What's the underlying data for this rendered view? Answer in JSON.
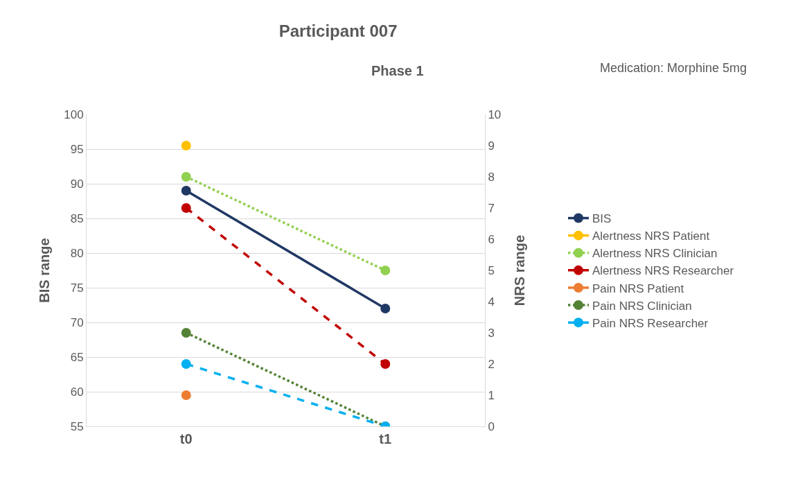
{
  "chart_data": {
    "type": "line",
    "title": "Participant 007",
    "subtitle": "Phase 1",
    "annotations": [
      "Medication: Morphine 5mg"
    ],
    "xlabel": null,
    "ylabel": "BIS range",
    "y2label": "NRS range",
    "categories": [
      "t0",
      "t1"
    ],
    "series": [
      {
        "name": "BIS",
        "color": "#203864",
        "values": [
          89,
          72
        ],
        "line_style": "solid"
      },
      {
        "name": "Alertness NRS Patient",
        "color": "#ffc000",
        "values": [
          9,
          null
        ],
        "axis": "y2",
        "line_style": "solid"
      },
      {
        "name": "Alertness NRS Clinician",
        "color": "#92d050",
        "values": [
          8,
          5
        ],
        "axis": "y2",
        "line_style": "dotted"
      },
      {
        "name": "Alertness NRS Researcher",
        "color": "#c00000",
        "values": [
          7,
          2
        ],
        "axis": "y2",
        "line_style": "dashed"
      },
      {
        "name": "Pain NRS Patient",
        "color": "#ed7d31",
        "values": [
          1,
          null
        ],
        "axis": "y2",
        "line_style": "solid"
      },
      {
        "name": "Pain NRS Clinician",
        "color": "#548235",
        "values": [
          3,
          0
        ],
        "axis": "y2",
        "line_style": "dotted"
      },
      {
        "name": "Pain NRS Researcher",
        "color": "#00b0f0",
        "values": [
          2,
          0
        ],
        "axis": "y2",
        "line_style": "dashed"
      }
    ],
    "ylim": [
      55,
      100
    ],
    "yticks": [
      55,
      60,
      65,
      70,
      75,
      80,
      85,
      90,
      95,
      100
    ],
    "y2lim": [
      0,
      10
    ],
    "y2ticks": [
      0,
      1,
      2,
      3,
      4,
      5,
      6,
      7,
      8,
      9,
      10
    ],
    "grid": "y",
    "legend": "right",
    "marker": "circle"
  }
}
